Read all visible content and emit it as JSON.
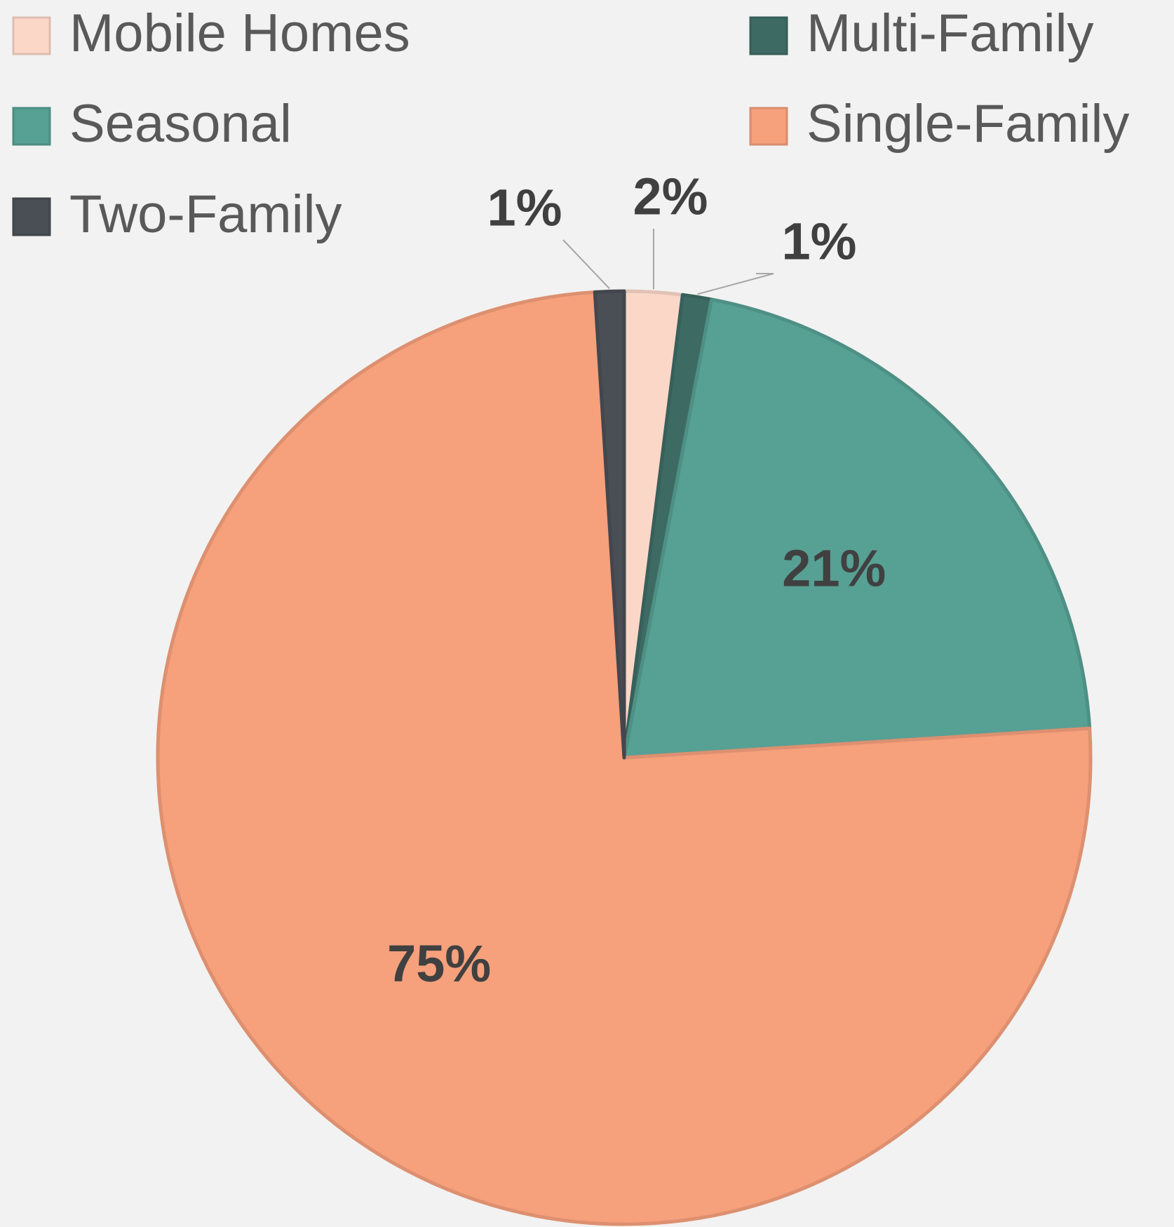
{
  "chart_data": {
    "type": "pie",
    "categories": [
      "Mobile Homes",
      "Multi-Family",
      "Seasonal",
      "Single-Family",
      "Two-Family"
    ],
    "values": [
      2,
      1,
      21,
      75,
      1
    ],
    "value_labels": [
      "2%",
      "1%",
      "21%",
      "75%",
      "1%"
    ],
    "colors": [
      "#fbd7c8",
      "#3d6b64",
      "#57a094",
      "#f6a07c",
      "#4a4f55"
    ],
    "legend": "top"
  }
}
